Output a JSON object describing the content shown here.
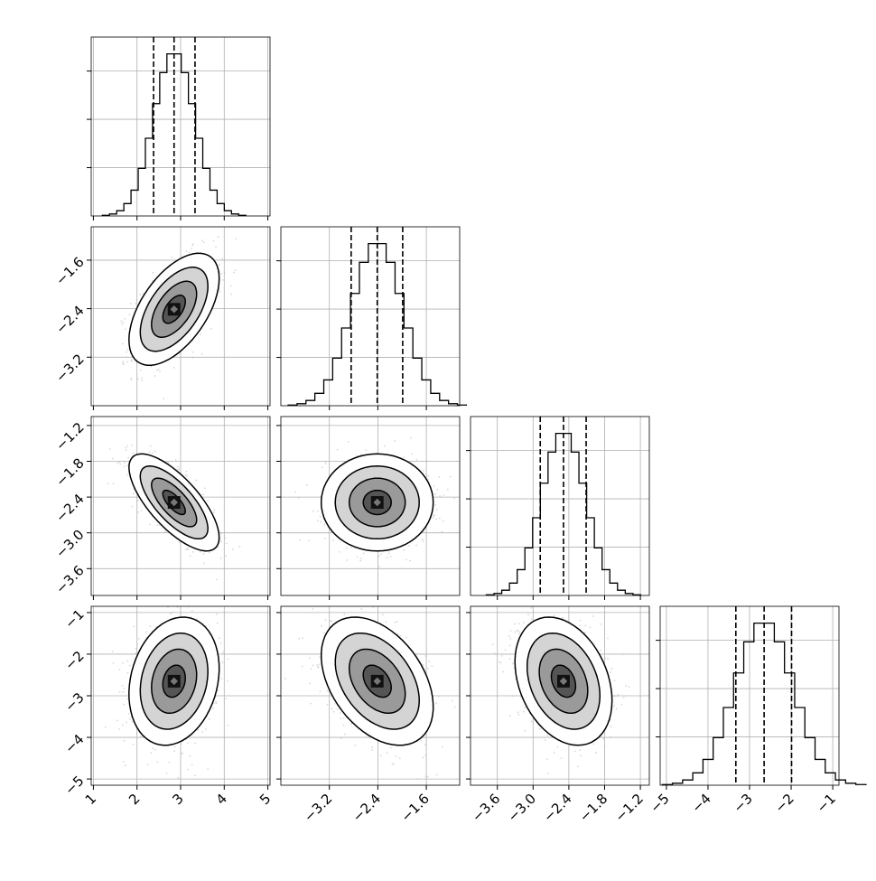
{
  "chart_data": {
    "type": "corner",
    "title": "",
    "params": [
      {
        "ticks": [
          1,
          2,
          3,
          4,
          5
        ],
        "tick_labels": [
          "1",
          "2",
          "3",
          "4",
          "5"
        ],
        "range": [
          0.95,
          5.05
        ]
      },
      {
        "ticks": [
          -3.2,
          -2.4,
          -1.6
        ],
        "tick_labels": [
          "−3.2",
          "−2.4",
          "−1.6"
        ],
        "range": [
          -4.0,
          -1.05
        ]
      },
      {
        "ticks": [
          -3.6,
          -3.0,
          -2.4,
          -1.8,
          -1.2
        ],
        "tick_labels": [
          "−3.6",
          "−3.0",
          "−2.4",
          "−1.8",
          "−1.2"
        ],
        "range": [
          -4.05,
          -1.05
        ]
      },
      {
        "ticks": [
          -5,
          -4,
          -3,
          -2,
          -1
        ],
        "tick_labels": [
          "−5",
          "−4",
          "−3",
          "−2",
          "−1"
        ],
        "range": [
          -5.15,
          -0.85
        ]
      }
    ],
    "marginals": [
      {
        "mean": 2.85,
        "std": 0.47,
        "quantiles": [
          2.38,
          2.85,
          3.33
        ]
      },
      {
        "mean": -2.41,
        "std": 0.42,
        "quantiles": [
          -2.84,
          -2.41,
          -1.99
        ]
      },
      {
        "mean": -2.49,
        "std": 0.37,
        "quantiles": [
          -2.88,
          -2.49,
          -2.11
        ]
      },
      {
        "mean": -2.65,
        "std": 0.7,
        "quantiles": [
          -3.33,
          -2.65,
          -1.99
        ]
      }
    ],
    "correlations": [
      {
        "i": 1,
        "j": 0,
        "rho": 0.55
      },
      {
        "i": 2,
        "j": 0,
        "rho": -0.72
      },
      {
        "i": 2,
        "j": 1,
        "rho": 0.0
      },
      {
        "i": 3,
        "j": 0,
        "rho": 0.2
      },
      {
        "i": 3,
        "j": 1,
        "rho": -0.4
      },
      {
        "i": 3,
        "j": 2,
        "rho": -0.3
      }
    ],
    "contour_levels_sigma": [
      0.5,
      1.0,
      1.5,
      2.0
    ],
    "grid": true,
    "histogram_bins": 20,
    "legend": "none",
    "colors": {
      "line": "#000000",
      "points": "#b8b8b8",
      "grid": "#b0b0b0"
    }
  }
}
